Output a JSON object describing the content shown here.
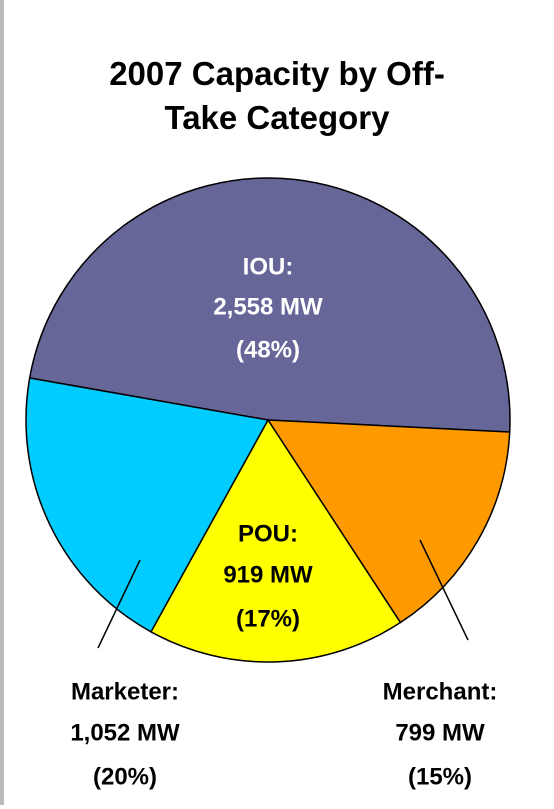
{
  "chart_data": {
    "type": "pie",
    "title": "2007 Capacity by Off-Take Category",
    "categories": [
      "IOU:",
      "Merchant:",
      "POU:",
      "Marketer:"
    ],
    "values": [
      2558,
      799,
      919,
      1052
    ],
    "value_labels": [
      "2,558 MW",
      "799 MW",
      "919 MW",
      "1,052 MW"
    ],
    "percents": [
      48,
      15,
      17,
      20
    ],
    "percent_labels": [
      "(48%)",
      "(15%)",
      "(17%)",
      "(20%)"
    ],
    "colors": [
      "#666699",
      "#ff9900",
      "#ffff00",
      "#00ccff"
    ]
  }
}
